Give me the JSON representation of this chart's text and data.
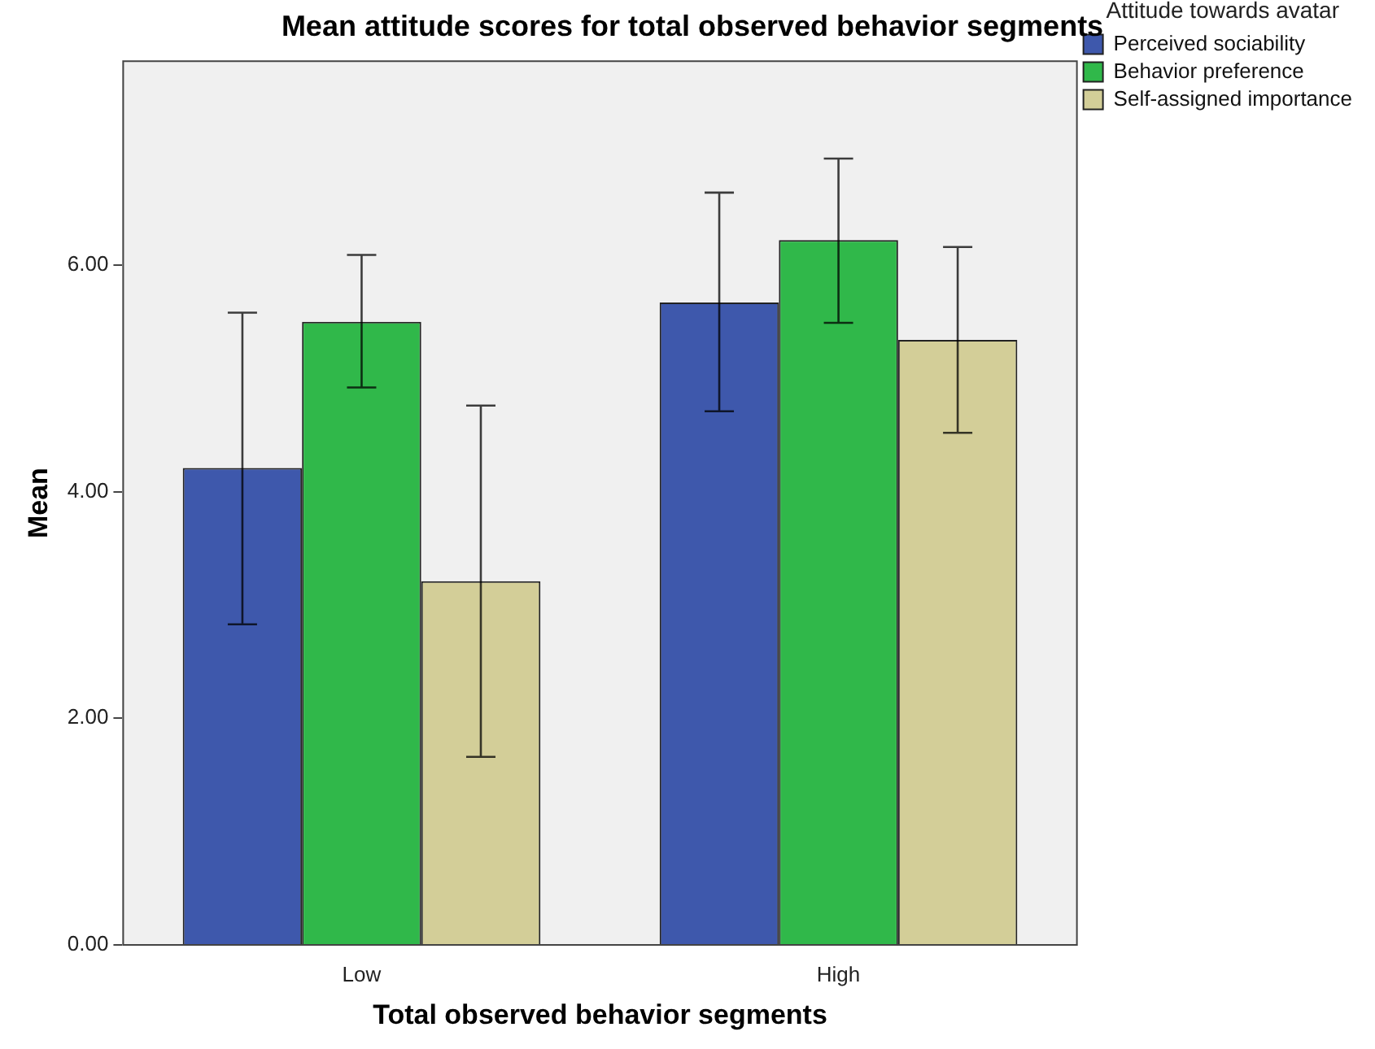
{
  "chart_data": {
    "type": "bar",
    "title": "Mean attitude scores for total observed behavior segments",
    "xlabel": "Total observed behavior segments",
    "ylabel": "Mean",
    "legend_title": "Attitude towards avatar",
    "categories": [
      "Low",
      "High"
    ],
    "series": [
      {
        "name": "Perceived sociability",
        "color": "#3e58ac",
        "values": [
          4.21,
          5.67
        ],
        "errors": [
          [
            2.83,
            5.58
          ],
          [
            4.71,
            6.64
          ]
        ]
      },
      {
        "name": "Behavior preference",
        "color": "#30b84a",
        "values": [
          5.5,
          6.22
        ],
        "errors": [
          [
            4.92,
            6.09
          ],
          [
            5.49,
            6.94
          ]
        ]
      },
      {
        "name": "Self-assigned importance",
        "color": "#d3ce98",
        "values": [
          3.21,
          5.34
        ],
        "errors": [
          [
            1.66,
            4.76
          ],
          [
            4.52,
            6.16
          ]
        ]
      }
    ],
    "ylim": [
      0,
      7.8
    ],
    "yticks": [
      {
        "value": 0,
        "label": "0.00"
      },
      {
        "value": 2,
        "label": "2.00"
      },
      {
        "value": 4,
        "label": "4.00"
      },
      {
        "value": 6,
        "label": "6.00"
      }
    ],
    "grid": false,
    "legend": "top right"
  }
}
